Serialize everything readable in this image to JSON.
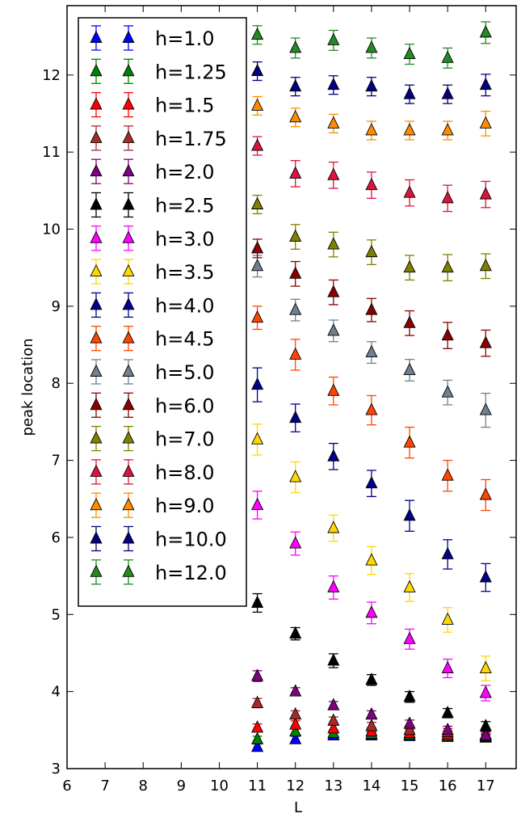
{
  "chart_data": {
    "type": "scatter",
    "marker": "triangle-up",
    "error_bars": true,
    "xlabel": "L",
    "ylabel": "peak location",
    "xlim": [
      6,
      17.8
    ],
    "ylim": [
      3,
      12.9
    ],
    "xticks": [
      "6",
      "7",
      "8",
      "9",
      "10",
      "11",
      "12",
      "13",
      "14",
      "15",
      "16",
      "17"
    ],
    "yticks": [
      "3",
      "4",
      "5",
      "6",
      "7",
      "8",
      "9",
      "10",
      "11",
      "12"
    ],
    "legend_position": "top-left",
    "x": [
      11,
      12,
      13,
      14,
      15,
      16,
      17
    ],
    "series": [
      {
        "name": "h=1.0",
        "color": "#0000ff",
        "values": [
          3.28,
          3.38,
          3.43,
          3.43,
          3.42,
          3.41,
          3.4
        ],
        "errors": [
          0.04,
          0.04,
          0.04,
          0.04,
          0.04,
          0.04,
          0.04
        ]
      },
      {
        "name": "h=1.25",
        "color": "#008000",
        "values": [
          3.38,
          3.48,
          3.46,
          3.45,
          3.44,
          3.42,
          3.41
        ],
        "errors": [
          0.04,
          0.04,
          0.04,
          0.04,
          0.04,
          0.04,
          0.04
        ]
      },
      {
        "name": "h=1.5",
        "color": "#ff0000",
        "values": [
          3.53,
          3.57,
          3.52,
          3.48,
          3.46,
          3.44,
          3.42
        ],
        "errors": [
          0.05,
          0.05,
          0.05,
          0.05,
          0.05,
          0.05,
          0.05
        ]
      },
      {
        "name": "h=1.75",
        "color": "#a52a2a",
        "values": [
          3.85,
          3.7,
          3.62,
          3.55,
          3.5,
          3.47,
          3.44
        ],
        "errors": [
          0.06,
          0.05,
          0.05,
          0.05,
          0.05,
          0.05,
          0.05
        ]
      },
      {
        "name": "h=2.0",
        "color": "#800080",
        "values": [
          4.2,
          4.0,
          3.82,
          3.7,
          3.58,
          3.5,
          3.43
        ],
        "errors": [
          0.07,
          0.05,
          0.05,
          0.05,
          0.05,
          0.05,
          0.05
        ]
      },
      {
        "name": "h=2.5",
        "color": "#000000",
        "values": [
          5.15,
          4.75,
          4.4,
          4.15,
          3.93,
          3.72,
          3.55
        ],
        "errors": [
          0.12,
          0.08,
          0.09,
          0.07,
          0.07,
          0.06,
          0.06
        ]
      },
      {
        "name": "h=3.0",
        "color": "#ff00ff",
        "values": [
          6.42,
          5.92,
          5.35,
          5.02,
          4.68,
          4.3,
          3.98
        ],
        "errors": [
          0.18,
          0.15,
          0.15,
          0.14,
          0.13,
          0.12,
          0.1
        ]
      },
      {
        "name": "h=3.5",
        "color": "#ffd700",
        "values": [
          7.27,
          6.78,
          6.12,
          5.7,
          5.35,
          4.93,
          4.3
        ],
        "errors": [
          0.2,
          0.2,
          0.17,
          0.18,
          0.18,
          0.16,
          0.16
        ]
      },
      {
        "name": "h=4.0",
        "color": "#00008b",
        "values": [
          7.98,
          7.55,
          7.05,
          6.7,
          6.28,
          5.78,
          5.48
        ],
        "errors": [
          0.22,
          0.18,
          0.17,
          0.17,
          0.2,
          0.19,
          0.18
        ]
      },
      {
        "name": "h=4.5",
        "color": "#ff4500",
        "values": [
          8.85,
          8.37,
          7.9,
          7.65,
          7.23,
          6.8,
          6.55
        ],
        "errors": [
          0.15,
          0.2,
          0.18,
          0.19,
          0.2,
          0.2,
          0.2
        ]
      },
      {
        "name": "h=5.0",
        "color": "#708090",
        "values": [
          9.52,
          8.95,
          8.68,
          8.4,
          8.17,
          7.88,
          7.65
        ],
        "errors": [
          0.14,
          0.14,
          0.14,
          0.14,
          0.14,
          0.16,
          0.22
        ]
      },
      {
        "name": "h=6.0",
        "color": "#8b0000",
        "values": [
          9.75,
          9.42,
          9.18,
          8.95,
          8.78,
          8.62,
          8.52
        ],
        "errors": [
          0.12,
          0.16,
          0.16,
          0.15,
          0.16,
          0.17,
          0.17
        ]
      },
      {
        "name": "h=7.0",
        "color": "#808000",
        "values": [
          10.32,
          9.9,
          9.8,
          9.7,
          9.5,
          9.5,
          9.52
        ],
        "errors": [
          0.12,
          0.16,
          0.16,
          0.16,
          0.16,
          0.17,
          0.16
        ]
      },
      {
        "name": "h=8.0",
        "color": "#dc143c",
        "values": [
          11.08,
          10.72,
          10.7,
          10.57,
          10.47,
          10.4,
          10.45
        ],
        "errors": [
          0.12,
          0.17,
          0.17,
          0.17,
          0.17,
          0.17,
          0.17
        ]
      },
      {
        "name": "h=9.0",
        "color": "#ff8c00",
        "values": [
          11.6,
          11.45,
          11.37,
          11.28,
          11.28,
          11.28,
          11.37
        ],
        "errors": [
          0.12,
          0.12,
          0.12,
          0.12,
          0.12,
          0.12,
          0.16
        ]
      },
      {
        "name": "h=10.0",
        "color": "#000080",
        "values": [
          12.05,
          11.85,
          11.87,
          11.85,
          11.75,
          11.75,
          11.87
        ],
        "errors": [
          0.12,
          0.12,
          0.12,
          0.12,
          0.12,
          0.12,
          0.14
        ]
      },
      {
        "name": "h=12.0",
        "color": "#228b22",
        "values": [
          12.52,
          12.35,
          12.45,
          12.35,
          12.27,
          12.22,
          12.55
        ],
        "errors": [
          0.12,
          0.13,
          0.13,
          0.13,
          0.13,
          0.13,
          0.14
        ]
      }
    ]
  }
}
